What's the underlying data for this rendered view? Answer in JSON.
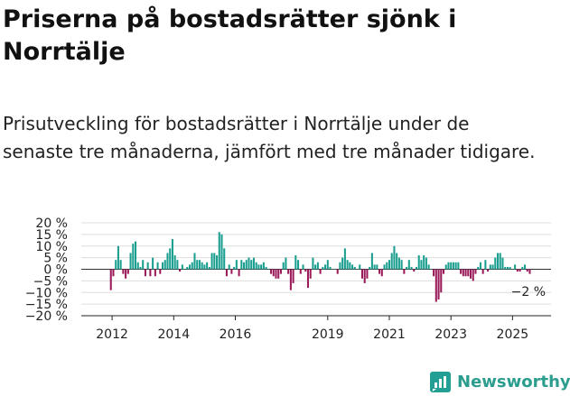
{
  "title": "Priserna på bostadsrätter sjönk i Norrtälje",
  "subtitle": "Prisutveckling för bostadsrätter i Norrtälje under de senaste tre månaderna, jämfört med tre månader tidigare.",
  "brand": {
    "name": "Newsworthy",
    "icon": "newsworthy-logo-icon"
  },
  "colors": {
    "positive": "#1a9e8f",
    "negative": "#9b1b5a",
    "grid": "#dddddd",
    "zero_line": "#333333"
  },
  "chart_data": {
    "type": "bar",
    "title": "",
    "xlabel": "",
    "ylabel": "",
    "ylim": [
      -20,
      20
    ],
    "yticks": [
      -20,
      -15,
      -10,
      -5,
      0,
      5,
      10,
      15,
      20
    ],
    "y_tick_suffix": " %",
    "grid": true,
    "x_range": [
      2011.0,
      2026.25
    ],
    "x_ticks": [
      {
        "value": 2012,
        "label": "2012"
      },
      {
        "value": 2014,
        "label": "2014"
      },
      {
        "value": 2016,
        "label": "2016"
      },
      {
        "value": 2019,
        "label": "2019"
      },
      {
        "value": 2021,
        "label": "2021"
      },
      {
        "value": 2023,
        "label": "2023"
      },
      {
        "value": 2025,
        "label": "2025"
      }
    ],
    "latest_label": "−2 %",
    "bar_width_years": 0.06,
    "series": [
      {
        "values": [
          [
            2011.96,
            -9
          ],
          [
            2012.04,
            -3
          ],
          [
            2012.12,
            4
          ],
          [
            2012.2,
            10
          ],
          [
            2012.28,
            4
          ],
          [
            2012.36,
            -2
          ],
          [
            2012.44,
            -4
          ],
          [
            2012.52,
            -2
          ],
          [
            2012.6,
            7
          ],
          [
            2012.68,
            11
          ],
          [
            2012.76,
            12
          ],
          [
            2012.84,
            3
          ],
          [
            2012.92,
            1
          ],
          [
            2013.0,
            4
          ],
          [
            2013.08,
            -3
          ],
          [
            2013.16,
            3
          ],
          [
            2013.24,
            -3
          ],
          [
            2013.32,
            5
          ],
          [
            2013.4,
            -3
          ],
          [
            2013.48,
            3
          ],
          [
            2013.56,
            -2
          ],
          [
            2013.64,
            3
          ],
          [
            2013.72,
            4
          ],
          [
            2013.8,
            7
          ],
          [
            2013.88,
            9
          ],
          [
            2013.96,
            13
          ],
          [
            2014.04,
            6
          ],
          [
            2014.12,
            4
          ],
          [
            2014.2,
            -1
          ],
          [
            2014.28,
            2
          ],
          [
            2014.36,
            0
          ],
          [
            2014.44,
            1
          ],
          [
            2014.52,
            2
          ],
          [
            2014.6,
            3
          ],
          [
            2014.68,
            7
          ],
          [
            2014.76,
            4
          ],
          [
            2014.84,
            4
          ],
          [
            2014.92,
            3
          ],
          [
            2015.0,
            2
          ],
          [
            2015.08,
            3
          ],
          [
            2015.16,
            1
          ],
          [
            2015.24,
            7
          ],
          [
            2015.32,
            7
          ],
          [
            2015.4,
            6
          ],
          [
            2015.48,
            16
          ],
          [
            2015.56,
            15
          ],
          [
            2015.64,
            9
          ],
          [
            2015.72,
            -3
          ],
          [
            2015.8,
            2
          ],
          [
            2015.88,
            -2
          ],
          [
            2015.96,
            1
          ],
          [
            2016.04,
            4
          ],
          [
            2016.12,
            -3
          ],
          [
            2016.2,
            4
          ],
          [
            2016.28,
            3
          ],
          [
            2016.36,
            4
          ],
          [
            2016.44,
            5
          ],
          [
            2016.52,
            4
          ],
          [
            2016.6,
            5
          ],
          [
            2016.68,
            3
          ],
          [
            2016.76,
            2
          ],
          [
            2016.84,
            2
          ],
          [
            2016.92,
            3
          ],
          [
            2017.0,
            1
          ],
          [
            2017.08,
            0
          ],
          [
            2017.16,
            -2
          ],
          [
            2017.24,
            -3
          ],
          [
            2017.32,
            -4
          ],
          [
            2017.4,
            -4
          ],
          [
            2017.48,
            -2
          ],
          [
            2017.56,
            3
          ],
          [
            2017.64,
            5
          ],
          [
            2017.72,
            -2
          ],
          [
            2017.8,
            -9
          ],
          [
            2017.88,
            -6
          ],
          [
            2017.96,
            6
          ],
          [
            2018.04,
            4
          ],
          [
            2018.12,
            -2
          ],
          [
            2018.2,
            2
          ],
          [
            2018.28,
            -1
          ],
          [
            2018.36,
            -8
          ],
          [
            2018.44,
            -4
          ],
          [
            2018.52,
            5
          ],
          [
            2018.6,
            2
          ],
          [
            2018.68,
            3
          ],
          [
            2018.76,
            -2
          ],
          [
            2018.84,
            1
          ],
          [
            2018.92,
            2
          ],
          [
            2019.0,
            4
          ],
          [
            2019.08,
            1
          ],
          [
            2019.16,
            0
          ],
          [
            2019.24,
            0
          ],
          [
            2019.32,
            -2
          ],
          [
            2019.4,
            3
          ],
          [
            2019.48,
            5
          ],
          [
            2019.56,
            9
          ],
          [
            2019.64,
            4
          ],
          [
            2019.72,
            3
          ],
          [
            2019.8,
            2
          ],
          [
            2019.88,
            1
          ],
          [
            2019.96,
            0
          ],
          [
            2020.04,
            2
          ],
          [
            2020.12,
            -4
          ],
          [
            2020.2,
            -6
          ],
          [
            2020.28,
            -4
          ],
          [
            2020.36,
            1
          ],
          [
            2020.44,
            7
          ],
          [
            2020.52,
            2
          ],
          [
            2020.6,
            2
          ],
          [
            2020.68,
            -2
          ],
          [
            2020.76,
            -3
          ],
          [
            2020.84,
            2
          ],
          [
            2020.92,
            3
          ],
          [
            2021.0,
            4
          ],
          [
            2021.08,
            7
          ],
          [
            2021.16,
            10
          ],
          [
            2021.24,
            7
          ],
          [
            2021.32,
            5
          ],
          [
            2021.4,
            4
          ],
          [
            2021.48,
            -2
          ],
          [
            2021.56,
            1
          ],
          [
            2021.64,
            4
          ],
          [
            2021.72,
            1
          ],
          [
            2021.8,
            -1
          ],
          [
            2021.88,
            1
          ],
          [
            2021.96,
            6
          ],
          [
            2022.04,
            4
          ],
          [
            2022.12,
            6
          ],
          [
            2022.2,
            5
          ],
          [
            2022.28,
            2
          ],
          [
            2022.36,
            0
          ],
          [
            2022.44,
            -3
          ],
          [
            2022.52,
            -14
          ],
          [
            2022.6,
            -13
          ],
          [
            2022.68,
            -10
          ],
          [
            2022.76,
            -2
          ],
          [
            2022.84,
            2
          ],
          [
            2022.92,
            3
          ],
          [
            2023.0,
            3
          ],
          [
            2023.08,
            3
          ],
          [
            2023.16,
            3
          ],
          [
            2023.24,
            3
          ],
          [
            2023.32,
            -2
          ],
          [
            2023.4,
            -3
          ],
          [
            2023.48,
            -3
          ],
          [
            2023.56,
            -3
          ],
          [
            2023.64,
            -4
          ],
          [
            2023.72,
            -5
          ],
          [
            2023.8,
            -2
          ],
          [
            2023.88,
            1
          ],
          [
            2023.96,
            3
          ],
          [
            2024.04,
            -2
          ],
          [
            2024.12,
            4
          ],
          [
            2024.2,
            -1
          ],
          [
            2024.28,
            2
          ],
          [
            2024.36,
            2
          ],
          [
            2024.44,
            5
          ],
          [
            2024.52,
            7
          ],
          [
            2024.6,
            7
          ],
          [
            2024.68,
            5
          ],
          [
            2024.76,
            1
          ],
          [
            2024.84,
            1
          ],
          [
            2024.92,
            1
          ],
          [
            2025.0,
            0
          ],
          [
            2025.08,
            2
          ],
          [
            2025.16,
            -1
          ],
          [
            2025.24,
            -1
          ],
          [
            2025.32,
            1
          ],
          [
            2025.4,
            2
          ],
          [
            2025.48,
            -1
          ],
          [
            2025.56,
            -2
          ]
        ]
      }
    ]
  }
}
